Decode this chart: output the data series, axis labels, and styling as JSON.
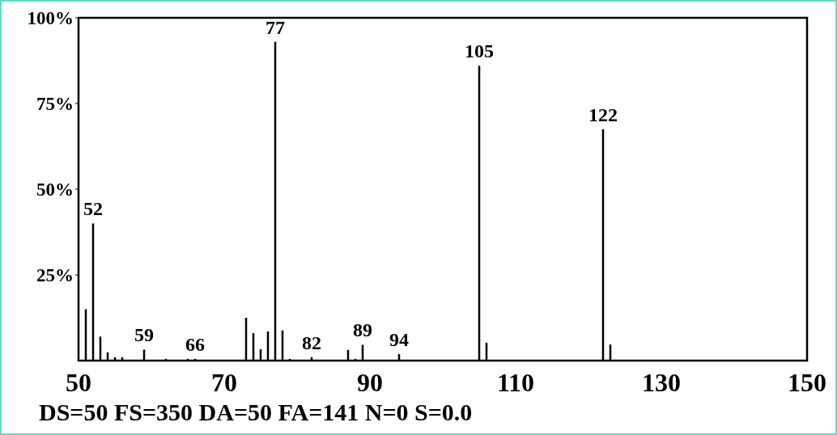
{
  "chart_data": {
    "type": "bar",
    "color": "#000000",
    "x": [
      51,
      52,
      53,
      54,
      55,
      56,
      59,
      62,
      65,
      66,
      73,
      74,
      75,
      76,
      77,
      78,
      79,
      82,
      87,
      88,
      89,
      94,
      105,
      106,
      122,
      123
    ],
    "values": [
      15,
      40,
      7,
      2.4,
      1,
      1,
      3.2,
      0.5,
      0.5,
      0.5,
      12.5,
      8,
      3.3,
      8.5,
      93,
      8.8,
      0.5,
      1,
      3.1,
      0.5,
      4.6,
      1.9,
      86,
      5.2,
      67.5,
      4.7
    ],
    "xlim": [
      50,
      150
    ],
    "xticks": [
      50,
      70,
      90,
      110,
      130,
      150
    ],
    "ylim": [
      0,
      100
    ],
    "yticks": [
      {
        "value": 25,
        "label": "25%"
      },
      {
        "value": 50,
        "label": "50%"
      },
      {
        "value": 75,
        "label": "75%"
      },
      {
        "value": 100,
        "label": "100%"
      }
    ],
    "annotations": [
      {
        "text": "52",
        "x": 52,
        "y": 40
      },
      {
        "text": "59",
        "x": 59,
        "y": 3.2
      },
      {
        "text": "66",
        "x": 66,
        "y": 0.5
      },
      {
        "text": "77",
        "x": 77,
        "y": 93
      },
      {
        "text": "82",
        "x": 82,
        "y": 1
      },
      {
        "text": "89",
        "x": 89,
        "y": 4.6
      },
      {
        "text": "94",
        "x": 94,
        "y": 1.9
      },
      {
        "text": "105",
        "x": 105,
        "y": 86
      },
      {
        "text": "122",
        "x": 122,
        "y": 67.5
      },
      "DS=50 FS=350 DA=50 FA=141 N=0 S=0.0"
    ]
  }
}
